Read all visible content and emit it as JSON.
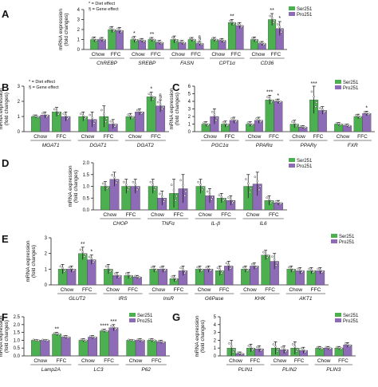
{
  "legend": {
    "series": [
      {
        "name": "Ser251",
        "color": "#4caf50"
      },
      {
        "name": "Pro251",
        "color": "#8e6bb6"
      }
    ]
  },
  "footnotes": {
    "diet": "* = Diet effect",
    "gene": "§ = Gene effect"
  },
  "colors": {
    "ser": "#4caf50",
    "pro": "#8e6bb6",
    "axis": "#222222",
    "dot": "#ffffff"
  },
  "chart_data": [
    {
      "panel": "A",
      "type": "bar",
      "ylabel": "mRNA expression\n(fold changes)",
      "ylim": [
        0,
        4
      ],
      "yticks": [
        0,
        1,
        2,
        3,
        4
      ],
      "footnotes": true,
      "legend": "top-right",
      "genes": [
        "ChREBP",
        "SREBP",
        "FASN",
        "CPT1α",
        "CD36"
      ],
      "groups": [
        "Chow",
        "FFC"
      ],
      "series": [
        {
          "name": "Ser251",
          "values": [
            [
              1.0,
              2.0
            ],
            [
              1.0,
              1.0
            ],
            [
              1.0,
              1.0
            ],
            [
              1.0,
              2.7
            ],
            [
              1.0,
              3.0
            ]
          ],
          "errors": [
            [
              0.25,
              0.3
            ],
            [
              0.3,
              0.2
            ],
            [
              0.35,
              0.2
            ],
            [
              0.2,
              0.3
            ],
            [
              0.25,
              0.6
            ]
          ]
        },
        {
          "name": "Pro251",
          "values": [
            [
              1.0,
              1.9
            ],
            [
              0.9,
              0.7
            ],
            [
              0.7,
              0.6
            ],
            [
              0.9,
              2.4
            ],
            [
              0.6,
              2.1
            ]
          ],
          "errors": [
            [
              0.2,
              0.3
            ],
            [
              0.2,
              0.2
            ],
            [
              0.2,
              0.2
            ],
            [
              0.2,
              0.3
            ],
            [
              0.2,
              0.7
            ]
          ]
        }
      ],
      "annotations": [
        {
          "gene": 1,
          "group": 0,
          "series": 0,
          "text": "*"
        },
        {
          "gene": 1,
          "group": 1,
          "series": 0,
          "text": "**"
        },
        {
          "gene": 2,
          "group": 1,
          "series": 1,
          "text": "§"
        },
        {
          "gene": 3,
          "group": 1,
          "series": 0,
          "text": "**"
        },
        {
          "gene": 4,
          "group": 1,
          "series": 0,
          "text": "**"
        },
        {
          "gene": 4,
          "group": 1,
          "series": 1,
          "text": "*"
        }
      ]
    },
    {
      "panel": "B",
      "type": "bar",
      "ylabel": "mRNA expression\n(fold changes)",
      "ylim": [
        0,
        3
      ],
      "yticks": [
        0,
        1,
        2,
        3
      ],
      "footnotes": true,
      "legend": "none",
      "genes": [
        "MGAT1",
        "DGAT1",
        "DGAT2"
      ],
      "groups": [
        "Chow",
        "FFC"
      ],
      "series": [
        {
          "name": "Ser251",
          "values": [
            [
              1.0,
              1.3
            ],
            [
              1.0,
              1.0
            ],
            [
              1.0,
              2.3
            ]
          ],
          "errors": [
            [
              0.1,
              0.3
            ],
            [
              0.3,
              0.7
            ],
            [
              0.2,
              0.3
            ]
          ]
        },
        {
          "name": "Pro251",
          "values": [
            [
              1.1,
              1.0
            ],
            [
              0.8,
              0.5
            ],
            [
              1.3,
              1.7
            ]
          ],
          "errors": [
            [
              0.2,
              0.3
            ],
            [
              0.5,
              0.3
            ],
            [
              0.2,
              0.4
            ]
          ]
        }
      ],
      "annotations": [
        {
          "gene": 2,
          "group": 1,
          "series": 0,
          "text": "*"
        },
        {
          "gene": 2,
          "group": 1,
          "series": 1,
          "text": "§"
        }
      ]
    },
    {
      "panel": "C",
      "type": "bar",
      "ylabel": "mRNA expression\n(fold changes)",
      "ylim": [
        0,
        6
      ],
      "yticks": [
        0,
        1,
        2,
        3,
        4,
        5,
        6
      ],
      "footnotes": false,
      "legend": "top-right",
      "genes": [
        "PGC1α",
        "PPARα",
        "PPARγ",
        "FXR"
      ],
      "groups": [
        "Chow",
        "FFC"
      ],
      "series": [
        {
          "name": "Ser251",
          "values": [
            [
              1.0,
              1.0
            ],
            [
              1.0,
              4.2
            ],
            [
              1.0,
              4.2
            ],
            [
              1.0,
              2.0
            ]
          ],
          "errors": [
            [
              0.3,
              0.4
            ],
            [
              0.3,
              0.6
            ],
            [
              0.5,
              1.8
            ],
            [
              0.2,
              0.3
            ]
          ]
        },
        {
          "name": "Pro251",
          "values": [
            [
              2.0,
              1.5
            ],
            [
              1.5,
              4.0
            ],
            [
              0.6,
              2.8
            ],
            [
              0.8,
              2.4
            ]
          ],
          "errors": [
            [
              1.0,
              0.4
            ],
            [
              0.4,
              0.3
            ],
            [
              0.2,
              0.5
            ],
            [
              0.2,
              0.3
            ]
          ]
        }
      ],
      "annotations": [
        {
          "gene": 1,
          "group": 1,
          "series": 0,
          "text": "***"
        },
        {
          "gene": 1,
          "group": 1,
          "series": 1,
          "text": "*"
        },
        {
          "gene": 2,
          "group": 1,
          "series": 0,
          "text": "***"
        },
        {
          "gene": 3,
          "group": 1,
          "series": 1,
          "text": "*"
        }
      ]
    },
    {
      "panel": "D",
      "type": "bar",
      "ylabel": "mRNA expression\n(fold changes)",
      "ylim": [
        0,
        2.0
      ],
      "yticks": [
        0,
        0.5,
        1.0,
        1.5,
        2.0
      ],
      "footnotes": false,
      "legend": "top-right",
      "genes": [
        "CHOP",
        "TNFα",
        "IL-β",
        "IL6"
      ],
      "groups": [
        "Chow",
        "FFC"
      ],
      "series": [
        {
          "name": "Ser251",
          "values": [
            [
              1.0,
              1.0
            ],
            [
              1.0,
              0.7
            ],
            [
              1.0,
              0.5
            ],
            [
              1.0,
              0.4
            ]
          ],
          "errors": [
            [
              0.2,
              0.3
            ],
            [
              0.3,
              0.6
            ],
            [
              0.3,
              0.2
            ],
            [
              0.5,
              0.2
            ]
          ]
        },
        {
          "name": "Pro251",
          "values": [
            [
              1.3,
              1.0
            ],
            [
              0.5,
              0.9
            ],
            [
              0.6,
              0.4
            ],
            [
              1.1,
              0.3
            ]
          ],
          "errors": [
            [
              0.3,
              0.3
            ],
            [
              0.3,
              0.6
            ],
            [
              0.3,
              0.2
            ],
            [
              0.5,
              0.1
            ]
          ]
        }
      ],
      "annotations": []
    },
    {
      "panel": "E",
      "type": "bar",
      "ylabel": "mRNA expression\n(fold changes)",
      "ylim": [
        0,
        3
      ],
      "yticks": [
        0,
        1,
        2,
        3
      ],
      "footnotes": false,
      "legend": "top-right",
      "genes": [
        "GLUT2",
        "IRS",
        "InsR",
        "G6Pase",
        "KHK",
        "AKT1"
      ],
      "groups": [
        "Chow",
        "FFC"
      ],
      "series": [
        {
          "name": "Ser251",
          "values": [
            [
              1.0,
              2.0
            ],
            [
              1.0,
              0.6
            ],
            [
              1.0,
              0.4
            ],
            [
              1.0,
              0.9
            ],
            [
              1.0,
              1.9
            ],
            [
              1.0,
              0.9
            ]
          ],
          "errors": [
            [
              0.3,
              0.4
            ],
            [
              0.3,
              0.2
            ],
            [
              0.2,
              0.2
            ],
            [
              0.2,
              0.3
            ],
            [
              0.2,
              0.3
            ],
            [
              0.2,
              0.2
            ]
          ]
        },
        {
          "name": "Pro251",
          "values": [
            [
              1.0,
              1.6
            ],
            [
              0.6,
              0.5
            ],
            [
              1.0,
              0.9
            ],
            [
              1.0,
              1.2
            ],
            [
              1.2,
              1.5
            ],
            [
              0.9,
              0.9
            ]
          ],
          "errors": [
            [
              0.2,
              0.3
            ],
            [
              0.2,
              0.1
            ],
            [
              0.2,
              0.3
            ],
            [
              0.2,
              0.3
            ],
            [
              0.2,
              0.5
            ],
            [
              0.2,
              0.2
            ]
          ]
        }
      ],
      "annotations": [
        {
          "gene": 0,
          "group": 1,
          "series": 0,
          "text": "**"
        },
        {
          "gene": 0,
          "group": 1,
          "series": 1,
          "text": "*"
        }
      ]
    },
    {
      "panel": "F",
      "type": "bar",
      "ylabel": "mRNA expression\n(fold changes)",
      "ylim": [
        0,
        2.5
      ],
      "yticks": [
        0,
        0.5,
        1.0,
        1.5,
        2.0,
        2.5
      ],
      "footnotes": false,
      "legend": "top-right",
      "genes": [
        "Lamp2A",
        "LC3",
        "P62"
      ],
      "groups": [
        "Chow",
        "FFC"
      ],
      "series": [
        {
          "name": "Ser251",
          "values": [
            [
              1.0,
              1.4
            ],
            [
              1.0,
              1.6
            ],
            [
              1.0,
              1.0
            ]
          ],
          "errors": [
            [
              0.05,
              0.1
            ],
            [
              0.1,
              0.1
            ],
            [
              0.05,
              0.1
            ]
          ]
        },
        {
          "name": "Pro251",
          "values": [
            [
              1.0,
              1.2
            ],
            [
              1.2,
              1.8
            ],
            [
              1.0,
              0.9
            ]
          ],
          "errors": [
            [
              0.05,
              0.1
            ],
            [
              0.1,
              0.2
            ],
            [
              0.1,
              0.1
            ]
          ]
        }
      ],
      "annotations": [
        {
          "gene": 0,
          "group": 1,
          "series": 0,
          "text": "**"
        },
        {
          "gene": 1,
          "group": 1,
          "series": 0,
          "text": "****"
        },
        {
          "gene": 1,
          "group": 1,
          "series": 1,
          "text": "***"
        }
      ]
    },
    {
      "panel": "G",
      "type": "bar",
      "ylabel": "mRNA expression\n(fold changes)",
      "ylim": [
        0,
        5
      ],
      "yticks": [
        0,
        1,
        2,
        3,
        4,
        5
      ],
      "footnotes": false,
      "legend": "top-right",
      "genes": [
        "PLIN1",
        "PLIN2",
        "PLIN3"
      ],
      "groups": [
        "Chow",
        "FFC"
      ],
      "series": [
        {
          "name": "Ser251",
          "values": [
            [
              1.0,
              1.0
            ],
            [
              1.0,
              1.0
            ],
            [
              1.0,
              1.0
            ]
          ],
          "errors": [
            [
              1.0,
              0.5
            ],
            [
              0.8,
              0.8
            ],
            [
              0.2,
              0.2
            ]
          ]
        },
        {
          "name": "Pro251",
          "values": [
            [
              0.3,
              0.9
            ],
            [
              0.8,
              0.7
            ],
            [
              1.0,
              1.4
            ]
          ],
          "errors": [
            [
              0.2,
              0.4
            ],
            [
              0.5,
              0.4
            ],
            [
              0.2,
              0.3
            ]
          ]
        }
      ],
      "annotations": []
    }
  ]
}
